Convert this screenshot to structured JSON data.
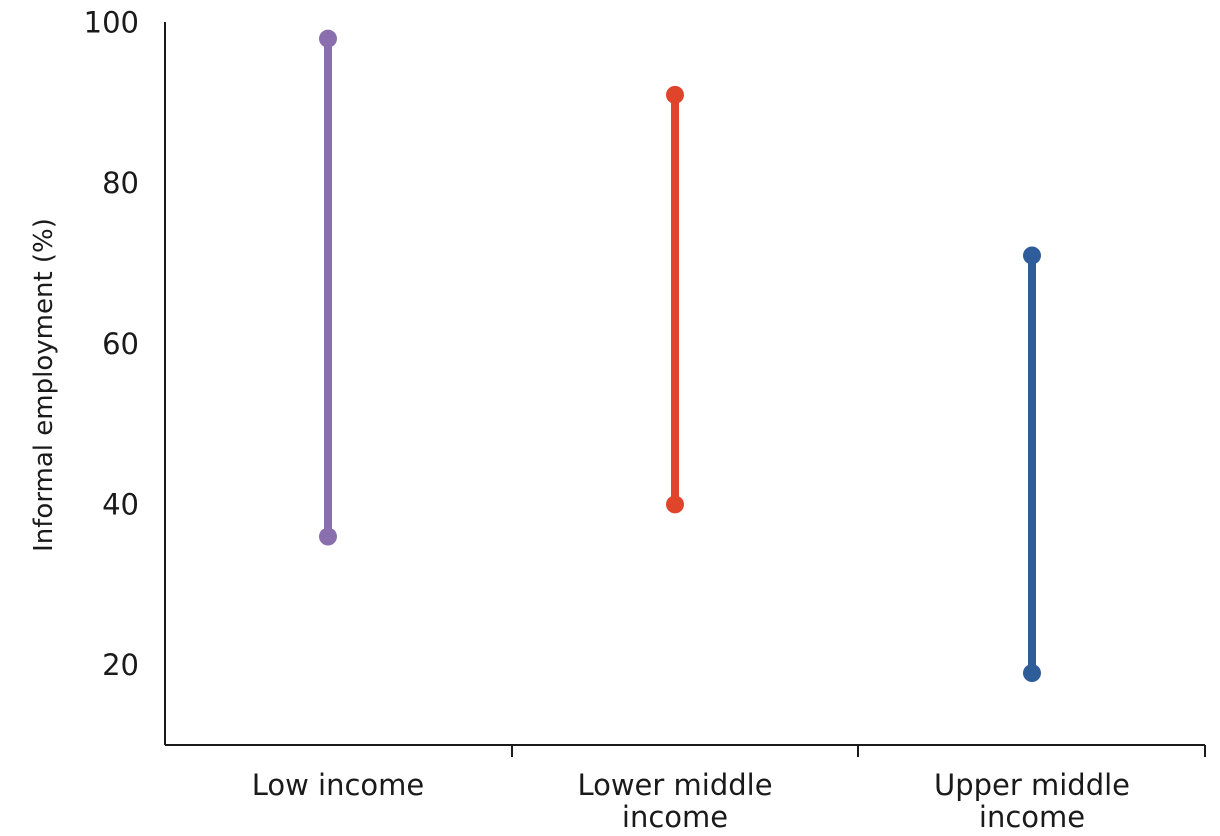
{
  "chart_data": {
    "type": "range",
    "title": "",
    "xlabel": "",
    "ylabel": "Informal employment (%)",
    "ylim": [
      10,
      100
    ],
    "yticks": [
      20,
      40,
      60,
      80,
      100
    ],
    "ytick_labels": [
      "20",
      "40",
      "60",
      "80",
      "100"
    ],
    "grid": false,
    "legend": "none",
    "categories": [
      {
        "label_lines": [
          "Low income"
        ],
        "min": 36,
        "max": 98,
        "color": "#8a6fae"
      },
      {
        "label_lines": [
          "Lower middle",
          "income"
        ],
        "min": 40,
        "max": 91,
        "color": "#e0452b"
      },
      {
        "label_lines": [
          "Upper middle",
          "income"
        ],
        "min": 19,
        "max": 71,
        "color": "#2f5d9a"
      }
    ]
  }
}
